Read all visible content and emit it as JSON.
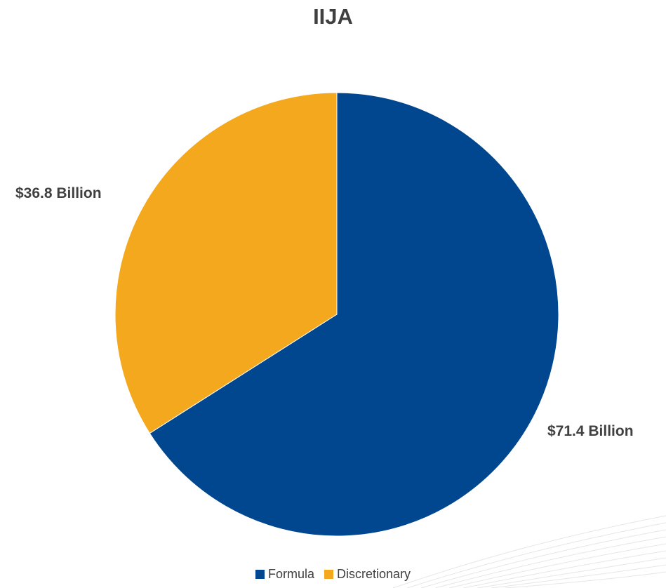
{
  "chart_data": {
    "type": "pie",
    "title": "IIJA",
    "categories": [
      "Formula",
      "Discretionary"
    ],
    "values": [
      71.4,
      36.8
    ],
    "labels": [
      "$71.4 Billion",
      "$36.8 Billion"
    ],
    "colors": [
      "#00478F",
      "#F4A81D"
    ],
    "legend": "bottom"
  }
}
